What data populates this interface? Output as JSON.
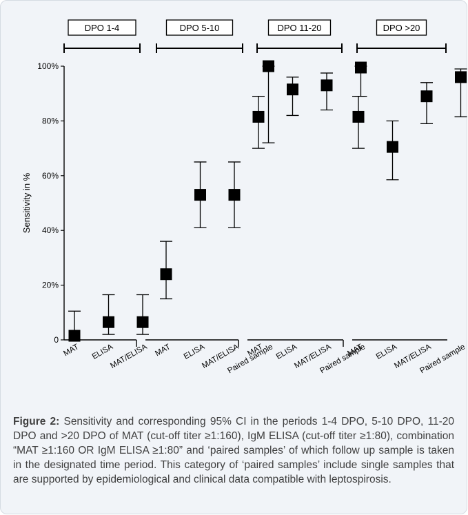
{
  "chart_data": {
    "type": "scatter",
    "ylabel": "Sensitivity in %",
    "ylim": [
      0,
      100
    ],
    "yticks": [
      0,
      20,
      40,
      60,
      80,
      100
    ],
    "ytick_labels": [
      "0",
      "20%",
      "40%",
      "60%",
      "80%",
      "100%"
    ],
    "grid": false,
    "marker": "square",
    "marker_color": "#000000",
    "groups": [
      {
        "label": "DPO 1-4",
        "points": [
          {
            "category": "MAT",
            "value": 1.5,
            "ci": [
              0,
              10.5
            ]
          },
          {
            "category": "ELISA",
            "value": 6.5,
            "ci": [
              2,
              16.5
            ]
          },
          {
            "category": "MAT/ELISA",
            "value": 6.5,
            "ci": [
              2,
              16.5
            ]
          }
        ]
      },
      {
        "label": "DPO 5-10",
        "points": [
          {
            "category": "MAT",
            "value": 24,
            "ci": [
              15,
              36
            ]
          },
          {
            "category": "ELISA",
            "value": 53,
            "ci": [
              41,
              65
            ]
          },
          {
            "category": "MAT/ELISA",
            "value": 53,
            "ci": [
              41,
              65
            ]
          },
          {
            "category": "Paired sample",
            "value": 100,
            "ci": [
              72,
              100
            ]
          }
        ]
      },
      {
        "label": "DPO 11-20",
        "points": [
          {
            "category": "MAT",
            "value": 81.5,
            "ci": [
              70,
              89
            ]
          },
          {
            "category": "ELISA",
            "value": 91.5,
            "ci": [
              82,
              96
            ]
          },
          {
            "category": "MAT/ELISA",
            "value": 93,
            "ci": [
              84,
              97.5
            ]
          },
          {
            "category": "Paired sample",
            "value": 99.5,
            "ci": [
              89,
              100
            ]
          }
        ]
      },
      {
        "label": "DPO >20",
        "points": [
          {
            "category": "MAT",
            "value": 81.5,
            "ci": [
              70,
              89
            ]
          },
          {
            "category": "ELISA",
            "value": 70.5,
            "ci": [
              58.5,
              80
            ]
          },
          {
            "category": "MAT/ELISA",
            "value": 89,
            "ci": [
              79,
              94
            ]
          },
          {
            "category": "Paired sample",
            "value": 96,
            "ci": [
              81.5,
              99
            ]
          }
        ]
      }
    ]
  },
  "caption": {
    "label": "Figure 2:",
    "text": " Sensitivity and corresponding 95% CI in the periods 1-4 DPO, 5-10 DPO, 11-20 DPO and >20 DPO of MAT (cut-off titer ≥1:160), IgM ELISA (cut-off titer ≥1:80), combination “MAT ≥1:160 OR IgM ELISA ≥1:80” and ‘paired samples’ of which follow up sample is taken in the designated time period. This category of ‘paired samples’ include single samples that are supported by epidemiological and clinical data compatible with leptospirosis."
  }
}
